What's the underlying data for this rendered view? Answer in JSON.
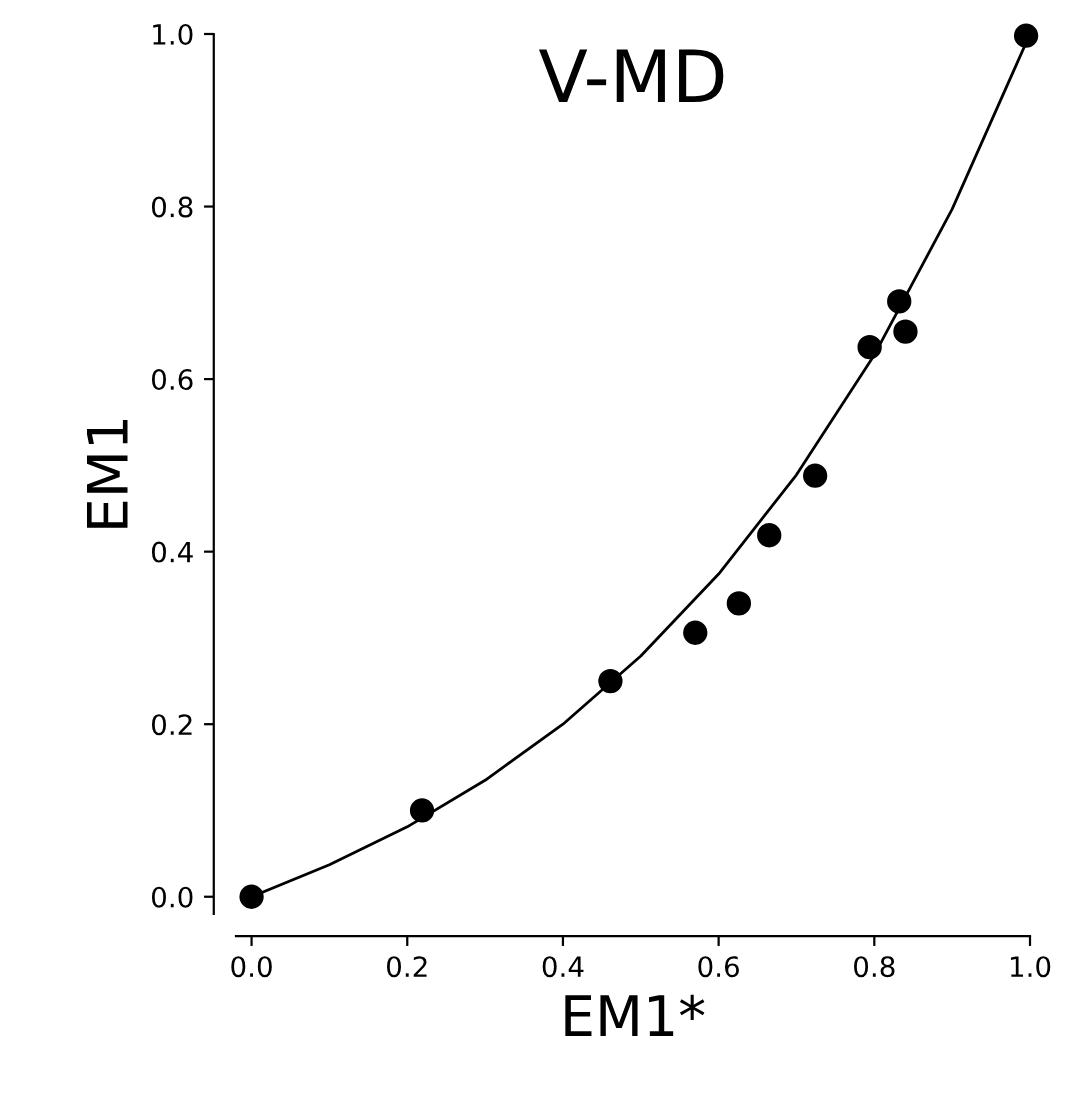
{
  "chart_data": {
    "type": "scatter",
    "title": "V-MD",
    "xlabel": "EM1*",
    "ylabel": "EM1",
    "series": [
      {
        "color": "#000000",
        "marker": "circle",
        "x": [
          0.0,
          0.219,
          0.461,
          0.57,
          0.626,
          0.665,
          0.724,
          0.794,
          0.832,
          0.84,
          0.995
        ],
        "values": [
          0.0,
          0.1,
          0.25,
          0.306,
          0.34,
          0.419,
          0.488,
          0.637,
          0.69,
          0.655,
          0.998
        ]
      },
      {
        "type": "line",
        "color": "#000000",
        "marker": "none",
        "x": [
          0.0,
          0.1,
          0.2,
          0.3,
          0.4,
          0.5,
          0.6,
          0.7,
          0.8,
          0.9,
          1.0
        ],
        "values": [
          0.0,
          0.037,
          0.081,
          0.135,
          0.2,
          0.279,
          0.374,
          0.489,
          0.628,
          0.797,
          1.0
        ]
      }
    ],
    "xlim": [
      -0.02,
      1.0
    ],
    "ylim": [
      -0.02,
      1.0
    ],
    "xticks": [
      {
        "value": 0,
        "label": "0.0"
      },
      {
        "value": 0.2,
        "label": "0.2"
      },
      {
        "value": 0.4,
        "label": "0.4"
      },
      {
        "value": 0.6,
        "label": "0.6"
      },
      {
        "value": 0.8,
        "label": "0.8"
      },
      {
        "value": 1,
        "label": "1.0"
      }
    ],
    "yticks": [
      {
        "value": 0,
        "label": "0.0"
      },
      {
        "value": 0.2,
        "label": "0.2"
      },
      {
        "value": 0.4,
        "label": "0.4"
      },
      {
        "value": 0.6,
        "label": "0.6"
      },
      {
        "value": 0.8,
        "label": "0.8"
      },
      {
        "value": 1,
        "label": "1.0"
      }
    ],
    "grid": false,
    "legend": false
  }
}
